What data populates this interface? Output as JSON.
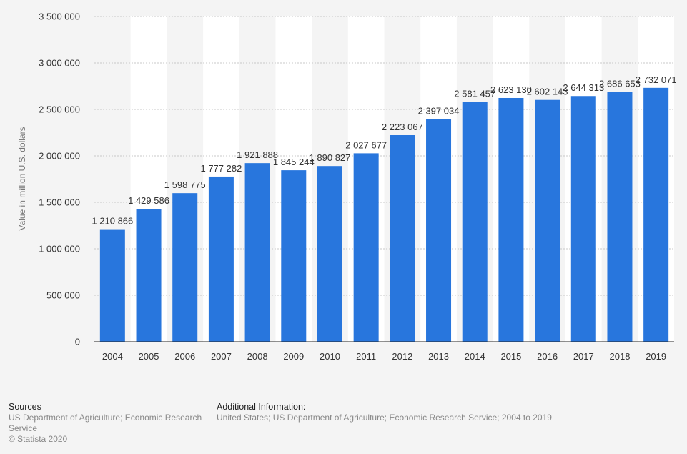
{
  "chart_data": {
    "type": "bar",
    "title": "",
    "xlabel": "",
    "ylabel": "Value in million U.S. dollars",
    "ylim": [
      0,
      3500000
    ],
    "yticks": [
      0,
      500000,
      1000000,
      1500000,
      2000000,
      2500000,
      3000000,
      3500000
    ],
    "ytick_labels": [
      "0",
      "500 000",
      "1 000 000",
      "1 500 000",
      "2 000 000",
      "2 500 000",
      "3 000 000",
      "3 500 000"
    ],
    "grid": true,
    "categories": [
      "2004",
      "2005",
      "2006",
      "2007",
      "2008",
      "2009",
      "2010",
      "2011",
      "2012",
      "2013",
      "2014",
      "2015",
      "2016",
      "2017",
      "2018",
      "2019"
    ],
    "values": [
      1210866,
      1429586,
      1598775,
      1777282,
      1921888,
      1845244,
      1890827,
      2027677,
      2223067,
      2397034,
      2581457,
      2623130,
      2602143,
      2644313,
      2686653,
      2732071
    ],
    "data_labels": [
      "1 210 866",
      "1 429 586",
      "1 598 775",
      "1 777 282",
      "1 921 888",
      "1 845 244",
      "1 890 827",
      "2 027 677",
      "2 223 067",
      "2 397 034",
      "2 581 457",
      "2 623 130",
      "2 602 143",
      "2 644 313",
      "2 686 653",
      "2 732 071"
    ],
    "colors": {
      "bar": "#2876dd",
      "band": "#ffffff",
      "grid": "#c9c9c9",
      "axis": "#222222"
    }
  },
  "footer": {
    "sources_title": "Sources",
    "sources_text": "US Department of Agriculture; Economic Research Service",
    "copyright": "© Statista 2020",
    "additional_title": "Additional Information:",
    "additional_text": "United States; US Department of Agriculture; Economic Research Service; 2004 to 2019"
  }
}
